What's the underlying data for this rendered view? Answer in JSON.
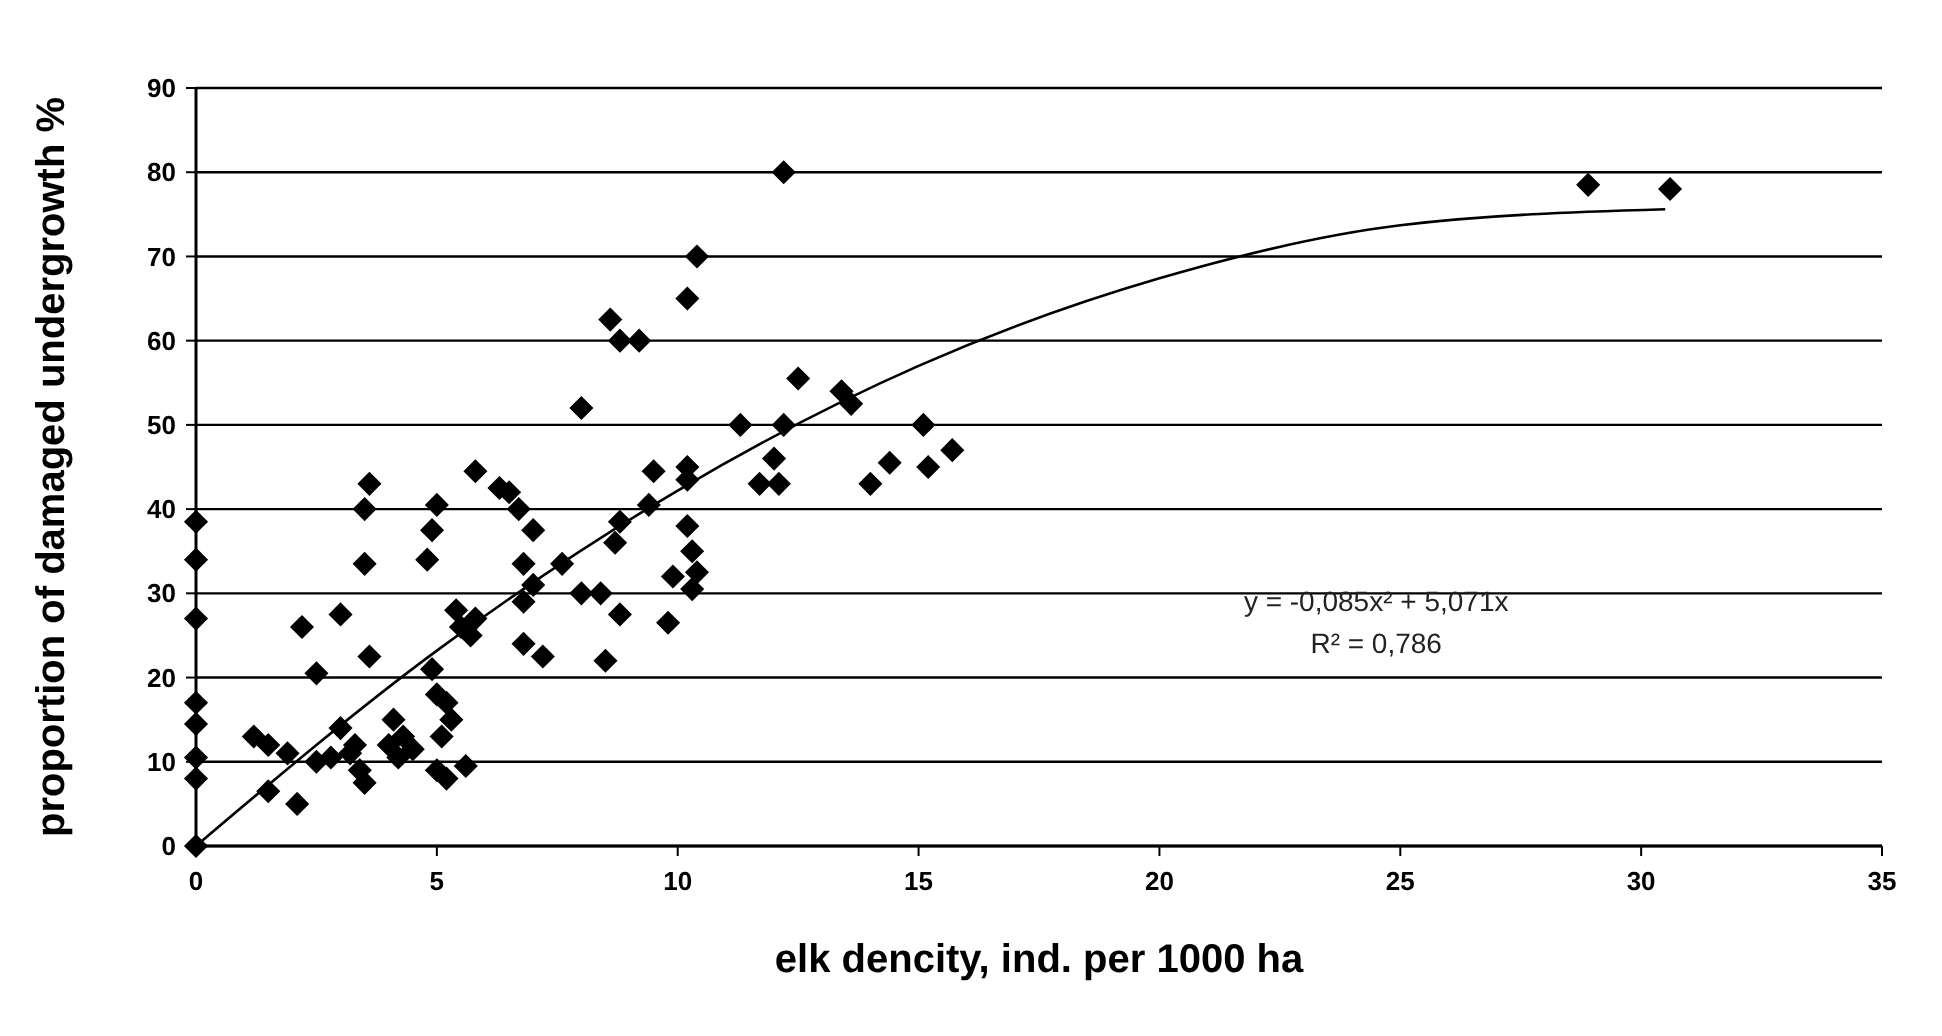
{
  "chart_data": {
    "type": "scatter",
    "xlabel": "elk dencity, ind. per 1000 ha",
    "ylabel": "proportion of damaged undergrowth %",
    "xlim": [
      0,
      35
    ],
    "xticks": [
      0,
      5,
      10,
      15,
      20,
      25,
      30,
      35
    ],
    "ylim": [
      0,
      90
    ],
    "yticks": [
      0,
      10,
      20,
      30,
      40,
      50,
      60,
      70,
      80,
      90
    ],
    "grid": "y",
    "annotations": [
      "y = -0,085x² + 5,071x",
      "R² = 0,786"
    ],
    "series": [
      {
        "marker": "diamond",
        "color": "#000000",
        "x": [
          0,
          0,
          0,
          0,
          0,
          0,
          0,
          0,
          1.2,
          1.5,
          1.9,
          1.5,
          2.1,
          2.2,
          2.5,
          2.8,
          2.5,
          3.0,
          3.0,
          3.2,
          3.4,
          3.3,
          3.5,
          3.5,
          3.5,
          3.6,
          3.6,
          4.0,
          4.1,
          4.2,
          4.5,
          4.3,
          4.8,
          5.0,
          4.9,
          4.9,
          5.0,
          5.1,
          5.2,
          5.3,
          5.0,
          5.2,
          5.4,
          5.5,
          5.7,
          5.8,
          5.6,
          5.8,
          6.3,
          6.5,
          6.7,
          6.8,
          7.0,
          7.0,
          6.8,
          6.8,
          7.2,
          7.6,
          8.0,
          8.0,
          8.4,
          8.5,
          8.6,
          8.7,
          8.8,
          8.8,
          8.8,
          9.2,
          9.5,
          9.4,
          9.8,
          9.9,
          10.2,
          10.2,
          10.2,
          10.4,
          10.2,
          10.3,
          10.3,
          10.4,
          11.3,
          11.7,
          12.0,
          12.1,
          12.2,
          12.2,
          12.5,
          13.4,
          13.6,
          14.0,
          14.4,
          15.1,
          15.2,
          15.7,
          28.9,
          30.6
        ],
        "values": [
          38.5,
          34,
          27,
          17,
          14.5,
          10.5,
          8,
          0,
          13,
          12,
          11,
          6.5,
          5,
          26,
          10,
          10.5,
          20.5,
          27.5,
          14,
          11,
          9,
          12,
          7.5,
          33.5,
          40,
          43,
          22.5,
          12,
          15,
          10.5,
          11.5,
          13,
          34,
          40.5,
          37.5,
          21,
          18,
          13,
          17,
          15,
          9,
          8,
          28,
          26,
          25,
          27,
          9.5,
          44.5,
          42.5,
          42,
          40,
          33.5,
          37.5,
          31,
          29,
          24,
          22.5,
          33.5,
          52,
          30,
          30,
          22,
          62.5,
          36,
          38.5,
          27.5,
          60,
          60,
          44.5,
          40.5,
          26.5,
          32,
          43.5,
          45,
          65,
          70,
          38,
          35,
          30.5,
          32.5,
          50,
          43,
          46,
          43,
          80,
          50,
          55.5,
          54,
          52.5,
          43,
          45.5,
          50,
          45,
          47,
          78.5,
          78
        ]
      },
      {
        "type": "line",
        "marker": "none",
        "color": "#000000",
        "x": [
          0,
          5,
          10,
          15,
          20,
          25,
          30.5
        ],
        "values": [
          0,
          23.2,
          42.2,
          57,
          67.4,
          73.7,
          75.6
        ]
      }
    ]
  }
}
